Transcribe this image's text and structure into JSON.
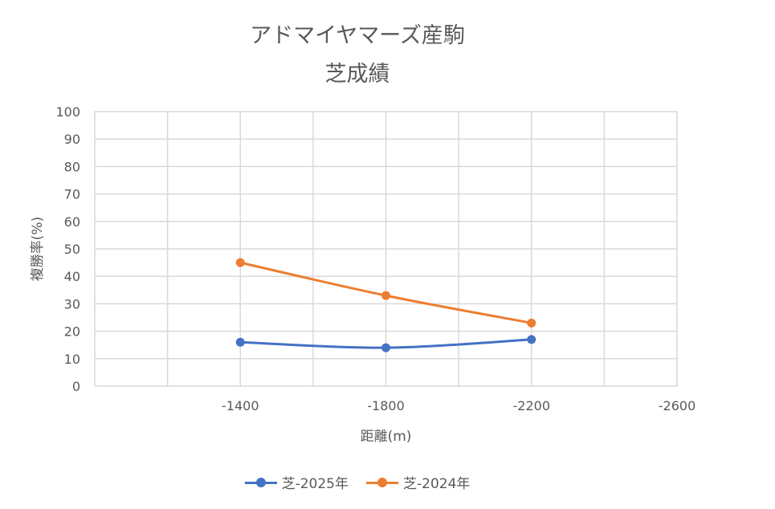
{
  "chart_data": {
    "type": "line",
    "title": "アドマイヤマーズ産駒",
    "subtitle": "芝成績",
    "xlabel": "距離(m)",
    "ylabel": "複勝率(%)",
    "x_ticks": [
      "-1400",
      "-1800",
      "-2200",
      "-2600"
    ],
    "y_ticks": [
      "0",
      "10",
      "20",
      "30",
      "40",
      "50",
      "60",
      "70",
      "80",
      "90",
      "100"
    ],
    "ylim": [
      0,
      100
    ],
    "grid": true,
    "legend_position": "bottom",
    "categories": [
      "-1400",
      "-1800",
      "-2200"
    ],
    "series": [
      {
        "name": "芝-2025年",
        "color": "#4472C4",
        "values": [
          16,
          14,
          17
        ]
      },
      {
        "name": "芝-2024年",
        "color": "#ED7D31",
        "values": [
          45,
          33,
          23
        ]
      }
    ]
  }
}
